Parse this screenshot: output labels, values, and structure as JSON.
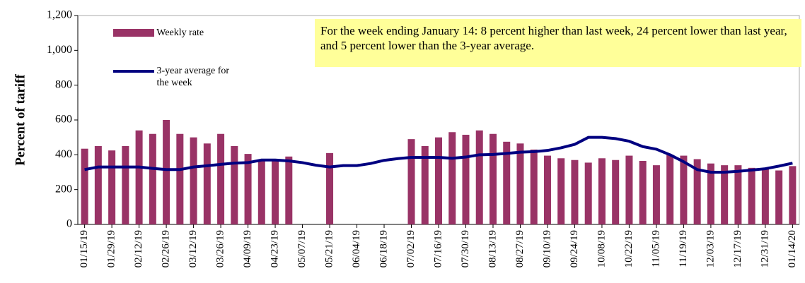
{
  "chart_data": {
    "type": "bar_line",
    "y_label": "Percent of tariff",
    "annotation": "For the week ending January 14: 8 percent higher than last week, 24 percent lower than last year, and 5 percent lower than the 3-year average.",
    "categories": [
      "01/15/19",
      null,
      "01/29/19",
      null,
      "02/12/19",
      null,
      "02/26/19",
      null,
      "03/12/19",
      null,
      "03/26/19",
      null,
      "04/09/19",
      null,
      "04/23/19",
      null,
      "05/07/19",
      null,
      "05/21/19",
      null,
      "06/04/19",
      null,
      "06/18/19",
      null,
      "07/02/19",
      null,
      "07/16/19",
      null,
      "07/30/19",
      null,
      "08/13/19",
      null,
      "08/27/19",
      null,
      "09/10/19",
      null,
      "09/24/19",
      null,
      "10/08/19",
      null,
      "10/22/19",
      null,
      "11/05/19",
      null,
      "11/19/19",
      null,
      "12/03/19",
      null,
      "12/17/19",
      null,
      "12/31/19",
      null,
      "01/14/20"
    ],
    "series": [
      {
        "name": "Weekly rate",
        "type": "bar",
        "color": "#993366",
        "values": [
          435,
          450,
          425,
          450,
          540,
          520,
          600,
          520,
          500,
          465,
          520,
          450,
          405,
          370,
          365,
          390,
          null,
          null,
          410,
          null,
          null,
          null,
          null,
          null,
          490,
          450,
          500,
          530,
          515,
          540,
          520,
          475,
          465,
          430,
          395,
          380,
          370,
          355,
          380,
          370,
          395,
          365,
          340,
          400,
          395,
          375,
          350,
          340,
          340,
          325,
          320,
          310,
          335
        ]
      },
      {
        "name": "3-year average for the week",
        "type": "line",
        "color": "#000080",
        "values": [
          315,
          330,
          330,
          330,
          330,
          322,
          315,
          315,
          330,
          337,
          345,
          352,
          355,
          370,
          370,
          365,
          355,
          340,
          330,
          338,
          338,
          350,
          368,
          378,
          385,
          385,
          385,
          380,
          387,
          400,
          402,
          408,
          415,
          418,
          425,
          440,
          460,
          500,
          500,
          493,
          478,
          447,
          432,
          400,
          360,
          315,
          300,
          300,
          305,
          312,
          320,
          335,
          352
        ]
      }
    ],
    "ylim": [
      0,
      1200
    ],
    "yticks": [
      0,
      200,
      400,
      600,
      800,
      {
        "value": 1000,
        "label": "1,000"
      },
      {
        "value": 1200,
        "label": "1,200"
      }
    ]
  }
}
